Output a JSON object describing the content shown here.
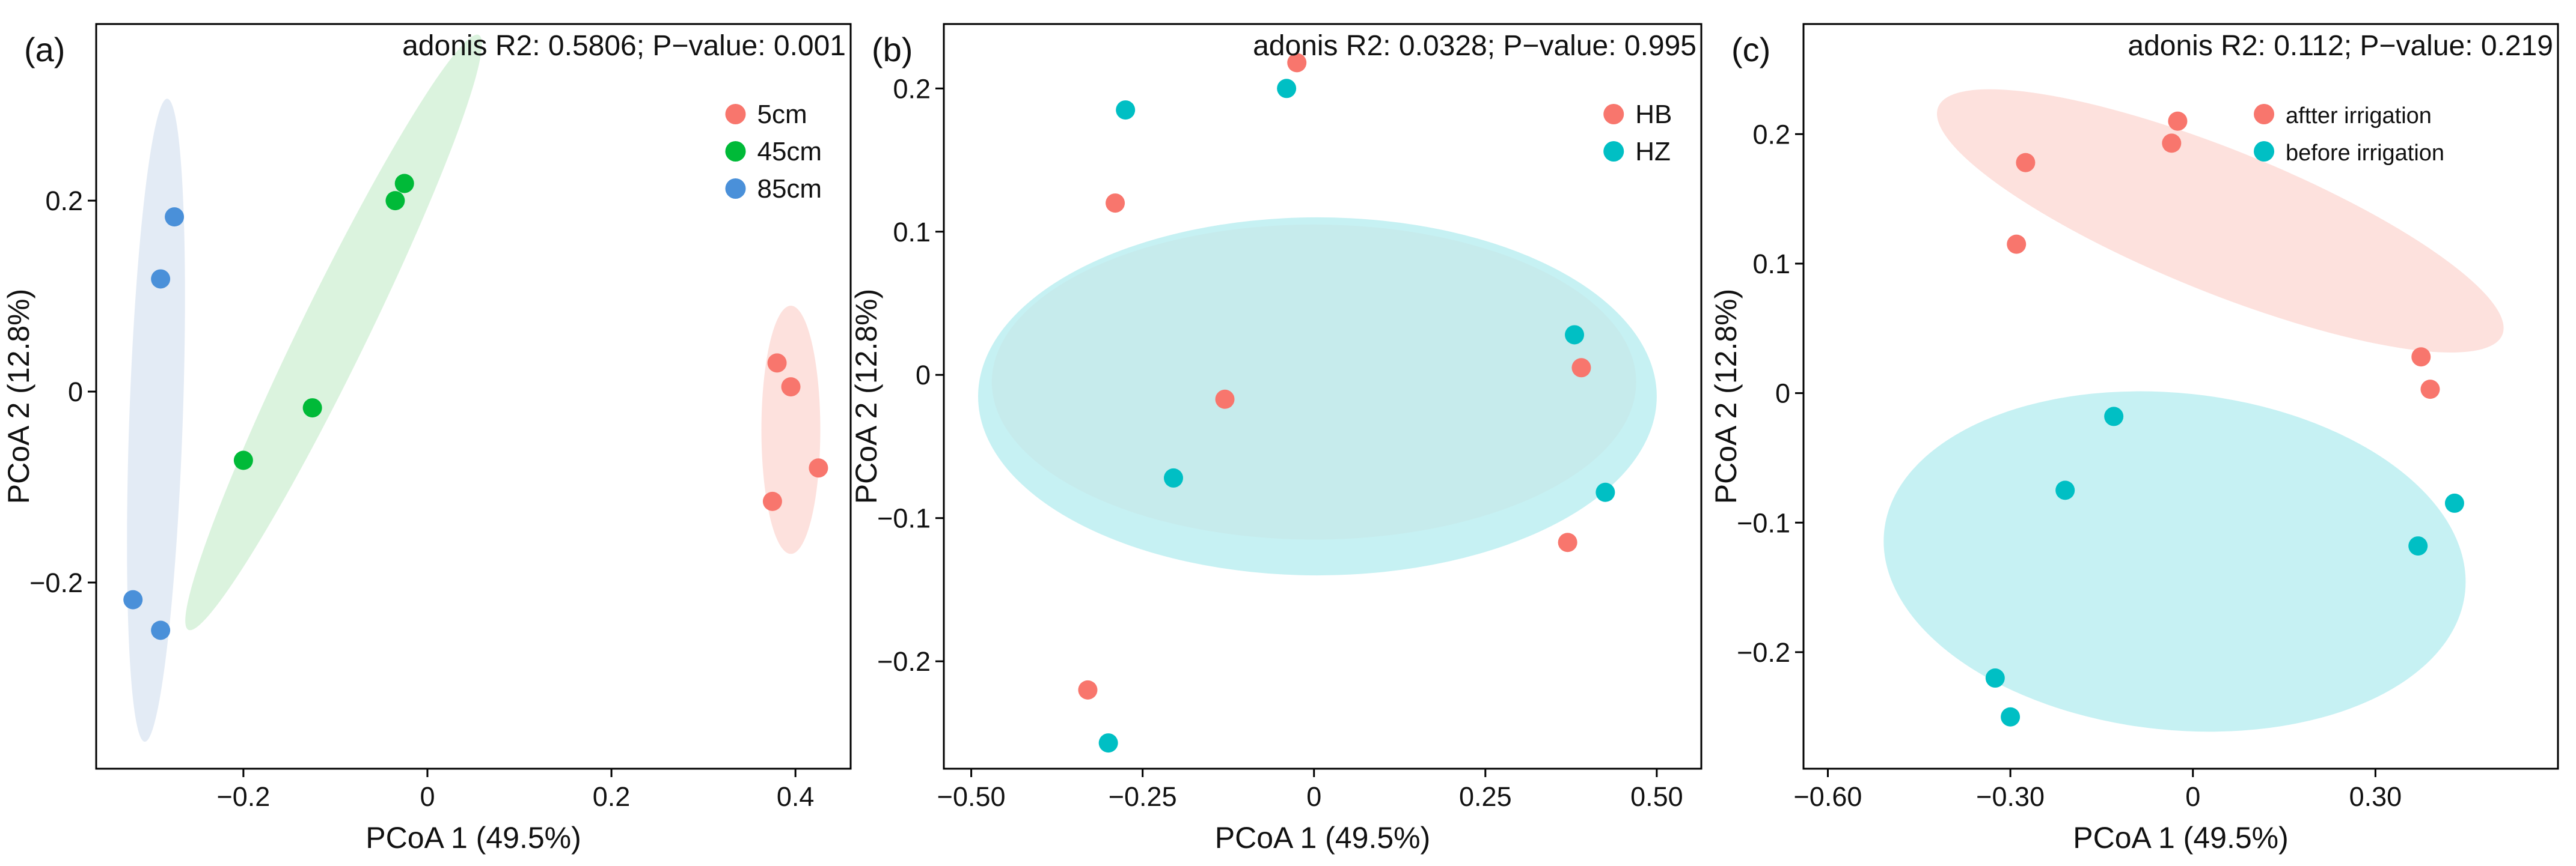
{
  "chart_data": [
    {
      "type": "scatter",
      "panel_label": "(a)",
      "annotation": "adonis R2: 0.5806; P−value: 0.001",
      "xlabel": "PCoA 1 (49.5%)",
      "ylabel": "PCoA 2 (12.8%)",
      "xlim": [
        -0.36,
        0.46
      ],
      "ylim": [
        -0.395,
        0.385
      ],
      "xticks": [
        -0.2,
        0.0,
        0.2,
        0.4
      ],
      "xtick_labels": [
        "−0.2",
        "0",
        "0.2",
        "0.4"
      ],
      "yticks": [
        0.2,
        0.0,
        -0.2
      ],
      "ytick_labels": [
        "0.2",
        "0",
        "−0.2"
      ],
      "legend_position": "top-right",
      "series": [
        {
          "name": "5cm",
          "color": "#F8766D",
          "points": [
            [
              0.38,
              0.03
            ],
            [
              0.395,
              0.005
            ],
            [
              0.425,
              -0.08
            ],
            [
              0.375,
              -0.115
            ]
          ],
          "ellipse": {
            "center": [
              0.395,
              -0.04
            ],
            "rx": 0.032,
            "ry": 0.13,
            "rotate_deg": 0,
            "fill": "#FDD9D5"
          }
        },
        {
          "name": "45cm",
          "color": "#00BA38",
          "points": [
            [
              -0.025,
              0.218
            ],
            [
              -0.035,
              0.2
            ],
            [
              -0.125,
              -0.017
            ],
            [
              -0.2,
              -0.072
            ]
          ],
          "ellipse": {
            "center": [
              -0.102,
              0.062
            ],
            "rx": 0.36,
            "ry": 0.035,
            "rotate_deg": -64,
            "fill": "#D2F0D6"
          }
        },
        {
          "name": "85cm",
          "color": "#4A90D9",
          "points": [
            [
              -0.275,
              0.183
            ],
            [
              -0.29,
              0.118
            ],
            [
              -0.32,
              -0.218
            ],
            [
              -0.29,
              -0.25
            ]
          ],
          "ellipse": {
            "center": [
              -0.295,
              -0.03
            ],
            "rx": 0.35,
            "ry": 0.028,
            "rotate_deg": -88,
            "fill": "#DCE6F2"
          }
        }
      ]
    },
    {
      "type": "scatter",
      "panel_label": "(b)",
      "annotation": "adonis R2: 0.0328; P−value: 0.995",
      "xlabel": "PCoA 1 (49.5%)",
      "ylabel": "PCoA 2 (12.8%)",
      "xlim": [
        -0.54,
        0.565
      ],
      "ylim": [
        -0.275,
        0.245
      ],
      "xticks": [
        -0.5,
        -0.25,
        0.0,
        0.25,
        0.5
      ],
      "xtick_labels": [
        "−0.50",
        "−0.25",
        "0",
        "0.25",
        "0.50"
      ],
      "yticks": [
        0.2,
        0.1,
        0.0,
        -0.1,
        -0.2
      ],
      "ytick_labels": [
        "0.2",
        "0.1",
        "0",
        "−0.1",
        "−0.2"
      ],
      "legend_position": "top-right",
      "series": [
        {
          "name": "HB",
          "color": "#F8766D",
          "points": [
            [
              -0.025,
              0.218
            ],
            [
              -0.29,
              0.12
            ],
            [
              -0.13,
              -0.017
            ],
            [
              0.39,
              0.005
            ],
            [
              0.37,
              -0.117
            ],
            [
              -0.33,
              -0.22
            ]
          ],
          "ellipse": {
            "center": [
              0.0,
              -0.005
            ],
            "rx": 0.47,
            "ry": 0.11,
            "rotate_deg": 0,
            "fill": "#FDD9D5"
          }
        },
        {
          "name": "HZ",
          "color": "#00BFC4",
          "points": [
            [
              -0.275,
              0.185
            ],
            [
              -0.04,
              0.2
            ],
            [
              0.38,
              0.028
            ],
            [
              0.425,
              -0.082
            ],
            [
              -0.205,
              -0.072
            ],
            [
              -0.3,
              -0.257
            ]
          ],
          "ellipse": {
            "center": [
              0.005,
              -0.015
            ],
            "rx": 0.495,
            "ry": 0.125,
            "rotate_deg": 0,
            "fill": "#B8EEF0"
          }
        }
      ]
    },
    {
      "type": "scatter",
      "panel_label": "(c)",
      "annotation": "adonis R2: 0.112; P−value: 0.219",
      "xlabel": "PCoA 1 (49.5%)",
      "ylabel": "PCoA 2 (12.8%)",
      "xlim": [
        -0.64,
        0.6
      ],
      "ylim": [
        -0.29,
        0.285
      ],
      "xticks": [
        -0.6,
        -0.3,
        0.0,
        0.3
      ],
      "xtick_labels": [
        "−0.60",
        "−0.30",
        "0",
        "0.30"
      ],
      "yticks": [
        0.2,
        0.1,
        0.0,
        -0.1,
        -0.2
      ],
      "ytick_labels": [
        "0.2",
        "0.1",
        "0",
        "−0.1",
        "−0.2"
      ],
      "legend_position": "top-right",
      "series": [
        {
          "name": "aftter irrigation",
          "color": "#F8766D",
          "points": [
            [
              -0.275,
              0.178
            ],
            [
              -0.025,
              0.21
            ],
            [
              -0.035,
              0.193
            ],
            [
              -0.29,
              0.115
            ],
            [
              0.375,
              0.028
            ],
            [
              0.39,
              0.003
            ]
          ],
          "ellipse": {
            "center": [
              0.045,
              0.133
            ],
            "rx": 0.5,
            "ry": 0.055,
            "rotate_deg": 22,
            "fill": "#FDD9D5"
          }
        },
        {
          "name": "before irrigation",
          "color": "#00BFC4",
          "points": [
            [
              -0.13,
              -0.018
            ],
            [
              -0.21,
              -0.075
            ],
            [
              0.43,
              -0.085
            ],
            [
              0.37,
              -0.118
            ],
            [
              -0.325,
              -0.22
            ],
            [
              -0.3,
              -0.25
            ]
          ],
          "ellipse": {
            "center": [
              -0.03,
              -0.13
            ],
            "rx": 0.48,
            "ry": 0.13,
            "rotate_deg": 6,
            "fill": "#B8EEF0"
          }
        }
      ]
    }
  ]
}
